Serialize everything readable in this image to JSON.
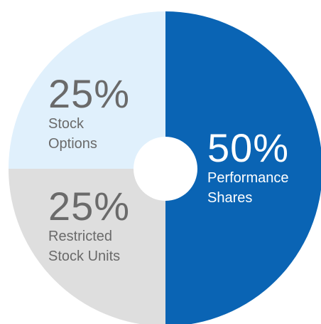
{
  "chart_data": {
    "type": "donut",
    "categories": [
      "Performance Shares",
      "Restricted Stock Units",
      "Stock Options"
    ],
    "values": [
      50,
      25,
      25
    ],
    "value_labels": [
      "50%",
      "25%",
      "25%"
    ],
    "colors": [
      "#0a64b4",
      "#dedede",
      "#e0f0fc"
    ],
    "label_colors": [
      "#ffffff",
      "#6a6a6a",
      "#6a6a6a"
    ]
  }
}
